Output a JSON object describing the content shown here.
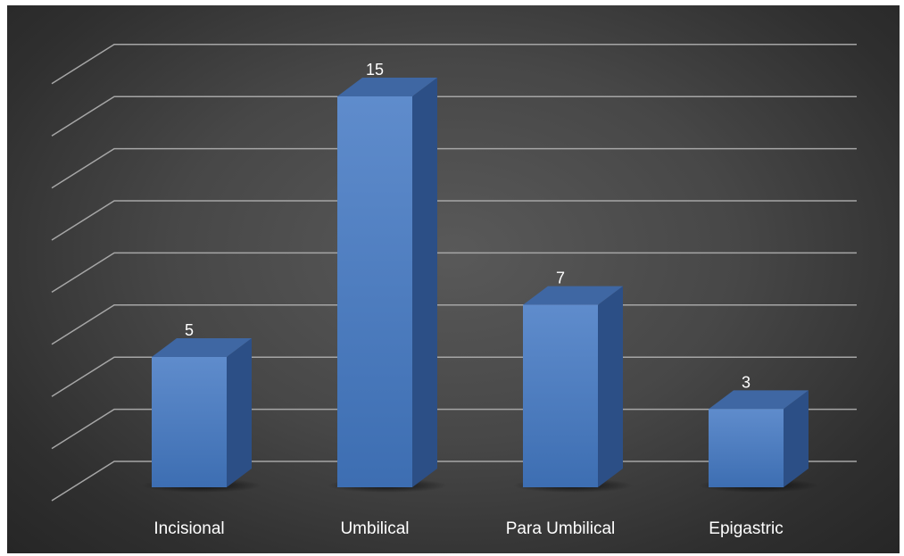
{
  "chart_data": {
    "type": "bar",
    "style": "3d-column",
    "categories": [
      "Incisional",
      "Umbilical",
      "Para Umbilical",
      "Epigastric"
    ],
    "values": [
      5,
      15,
      7,
      3
    ],
    "title": "",
    "xlabel": "",
    "ylabel": "",
    "ylim": [
      0,
      16
    ],
    "grid": true,
    "legend": "none",
    "data_labels": true,
    "colors": {
      "bar_front": "#4a7cc0",
      "bar_top": "#3f67a3",
      "bar_side": "#2c4f86",
      "background": "#404040",
      "grid": "#a6a6a6",
      "text": "#ffffff"
    }
  }
}
